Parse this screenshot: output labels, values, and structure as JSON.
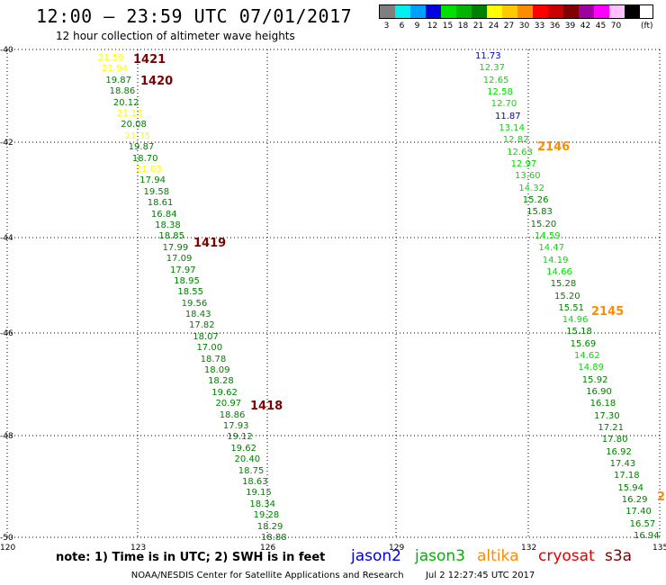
{
  "header": {
    "title": "12:00 – 23:59 UTC 07/01/2017",
    "subtitle": "12 hour collection of altimeter wave heights"
  },
  "legend": {
    "unit": "(ft)",
    "items": [
      {
        "label": "3",
        "color": "#7f7f7f"
      },
      {
        "label": "6",
        "color": "#00f0f0"
      },
      {
        "label": "9",
        "color": "#00a0ff"
      },
      {
        "label": "12",
        "color": "#0000e0"
      },
      {
        "label": "15",
        "color": "#00e000"
      },
      {
        "label": "18",
        "color": "#00b400"
      },
      {
        "label": "21",
        "color": "#008000"
      },
      {
        "label": "24",
        "color": "#ffff00"
      },
      {
        "label": "27",
        "color": "#ffc800"
      },
      {
        "label": "30",
        "color": "#ff8c00"
      },
      {
        "label": "33",
        "color": "#ff0000"
      },
      {
        "label": "36",
        "color": "#c80000"
      },
      {
        "label": "39",
        "color": "#800000"
      },
      {
        "label": "42",
        "color": "#a000a0"
      },
      {
        "label": "45",
        "color": "#ff00ff"
      },
      {
        "label": "70",
        "color": "#ffc0ff"
      },
      {
        "label": "",
        "color": "#000000"
      }
    ]
  },
  "axes": {
    "lat_labels": [
      "-40",
      "-42",
      "-44",
      "-46",
      "-48",
      "-50"
    ],
    "lon_labels": [
      "120",
      "123",
      "126",
      "129",
      "132",
      "135"
    ]
  },
  "pass_labels": [
    {
      "text": "1421",
      "color": "#800000"
    },
    {
      "text": "1420",
      "color": "#800000"
    },
    {
      "text": "1419",
      "color": "#800000"
    },
    {
      "text": "1418",
      "color": "#800000"
    },
    {
      "text": "2146",
      "color": "#ff8c00"
    },
    {
      "text": "2145",
      "color": "#ff8c00"
    },
    {
      "text": "2",
      "color": "#ff8c00"
    }
  ],
  "track_left": [
    {
      "v": "21.59",
      "c": "#ffff00"
    },
    {
      "v": "21.94",
      "c": "#ffff00"
    },
    {
      "v": "19.87",
      "c": "#008000"
    },
    {
      "v": "18.86",
      "c": "#008000"
    },
    {
      "v": "20.12",
      "c": "#008000"
    },
    {
      "v": "21.16",
      "c": "#ffff00"
    },
    {
      "v": "20.08",
      "c": "#008000"
    },
    {
      "v": "21.35",
      "c": "#ffff00"
    },
    {
      "v": "19.87",
      "c": "#008000"
    },
    {
      "v": "18.70",
      "c": "#008000"
    },
    {
      "v": "21.03",
      "c": "#ffff00"
    },
    {
      "v": "17.94",
      "c": "#008000"
    },
    {
      "v": "19.58",
      "c": "#008000"
    },
    {
      "v": "18.61",
      "c": "#008000"
    },
    {
      "v": "16.84",
      "c": "#008000"
    },
    {
      "v": "18.38",
      "c": "#008000"
    },
    {
      "v": "18.85",
      "c": "#008000"
    },
    {
      "v": "17.99",
      "c": "#008000"
    },
    {
      "v": "17.09",
      "c": "#008000"
    },
    {
      "v": "17.97",
      "c": "#008000"
    },
    {
      "v": "18.95",
      "c": "#008000"
    },
    {
      "v": "18.55",
      "c": "#008000"
    },
    {
      "v": "19.56",
      "c": "#008000"
    },
    {
      "v": "18.43",
      "c": "#008000"
    },
    {
      "v": "17.82",
      "c": "#008000"
    },
    {
      "v": "18.07",
      "c": "#008000"
    },
    {
      "v": "17.00",
      "c": "#008000"
    },
    {
      "v": "18.78",
      "c": "#008000"
    },
    {
      "v": "18.09",
      "c": "#008000"
    },
    {
      "v": "18.28",
      "c": "#008000"
    },
    {
      "v": "19.62",
      "c": "#008000"
    },
    {
      "v": "20.97",
      "c": "#008000"
    },
    {
      "v": "18.86",
      "c": "#008000"
    },
    {
      "v": "17.93",
      "c": "#008000"
    },
    {
      "v": "19.12",
      "c": "#008000"
    },
    {
      "v": "19.62",
      "c": "#008000"
    },
    {
      "v": "20.40",
      "c": "#008000"
    },
    {
      "v": "18.75",
      "c": "#008000"
    },
    {
      "v": "18.63",
      "c": "#008000"
    },
    {
      "v": "19.15",
      "c": "#008000"
    },
    {
      "v": "18.34",
      "c": "#008000"
    },
    {
      "v": "19.28",
      "c": "#008000"
    },
    {
      "v": "18.29",
      "c": "#008000"
    },
    {
      "v": "18.88",
      "c": "#008000"
    }
  ],
  "track_right": [
    {
      "v": "11.73",
      "c": "#0000e0"
    },
    {
      "v": "12.37",
      "c": "#00e000"
    },
    {
      "v": "12.65",
      "c": "#00e000"
    },
    {
      "v": "12.58",
      "c": "#00e000"
    },
    {
      "v": "12.70",
      "c": "#00e000"
    },
    {
      "v": "11.87",
      "c": "#0000e0"
    },
    {
      "v": "13.14",
      "c": "#00e000"
    },
    {
      "v": "12.82",
      "c": "#00e000"
    },
    {
      "v": "12.63",
      "c": "#00e000"
    },
    {
      "v": "12.97",
      "c": "#00e000"
    },
    {
      "v": "13.60",
      "c": "#00e000"
    },
    {
      "v": "14.32",
      "c": "#00e000"
    },
    {
      "v": "15.26",
      "c": "#008000"
    },
    {
      "v": "15.83",
      "c": "#008000"
    },
    {
      "v": "15.20",
      "c": "#008000"
    },
    {
      "v": "14.59",
      "c": "#00e000"
    },
    {
      "v": "14.47",
      "c": "#00e000"
    },
    {
      "v": "14.19",
      "c": "#00e000"
    },
    {
      "v": "14.66",
      "c": "#00e000"
    },
    {
      "v": "15.28",
      "c": "#008000"
    },
    {
      "v": "15.20",
      "c": "#008000"
    },
    {
      "v": "15.51",
      "c": "#008000"
    },
    {
      "v": "14.96",
      "c": "#00e000"
    },
    {
      "v": "15.18",
      "c": "#008000"
    },
    {
      "v": "15.69",
      "c": "#008000"
    },
    {
      "v": "14.62",
      "c": "#00e000"
    },
    {
      "v": "14.89",
      "c": "#00e000"
    },
    {
      "v": "15.92",
      "c": "#008000"
    },
    {
      "v": "16.90",
      "c": "#008000"
    },
    {
      "v": "16.18",
      "c": "#008000"
    },
    {
      "v": "17.30",
      "c": "#008000"
    },
    {
      "v": "17.21",
      "c": "#008000"
    },
    {
      "v": "17.80",
      "c": "#008000"
    },
    {
      "v": "16.92",
      "c": "#008000"
    },
    {
      "v": "17.43",
      "c": "#008000"
    },
    {
      "v": "17.18",
      "c": "#008000"
    },
    {
      "v": "15.94",
      "c": "#008000"
    },
    {
      "v": "16.29",
      "c": "#008000"
    },
    {
      "v": "17.40",
      "c": "#008000"
    },
    {
      "v": "16.57",
      "c": "#008000"
    },
    {
      "v": "16.94",
      "c": "#008000"
    }
  ],
  "note": "note: 1) Time is in UTC; 2) SWH is in feet",
  "satellites": [
    {
      "name": "jason2",
      "color": "#0000e0"
    },
    {
      "name": "jason3",
      "color": "#00b400"
    },
    {
      "name": "altika",
      "color": "#ff8c00"
    },
    {
      "name": "cryosat",
      "color": "#e00000"
    },
    {
      "name": "s3a",
      "color": "#800000"
    }
  ],
  "footer": {
    "credit": "NOAA/NESDIS Center for Satellite Applications and Research",
    "timestamp": "Jul  2 12:27:45 UTC 2017"
  }
}
